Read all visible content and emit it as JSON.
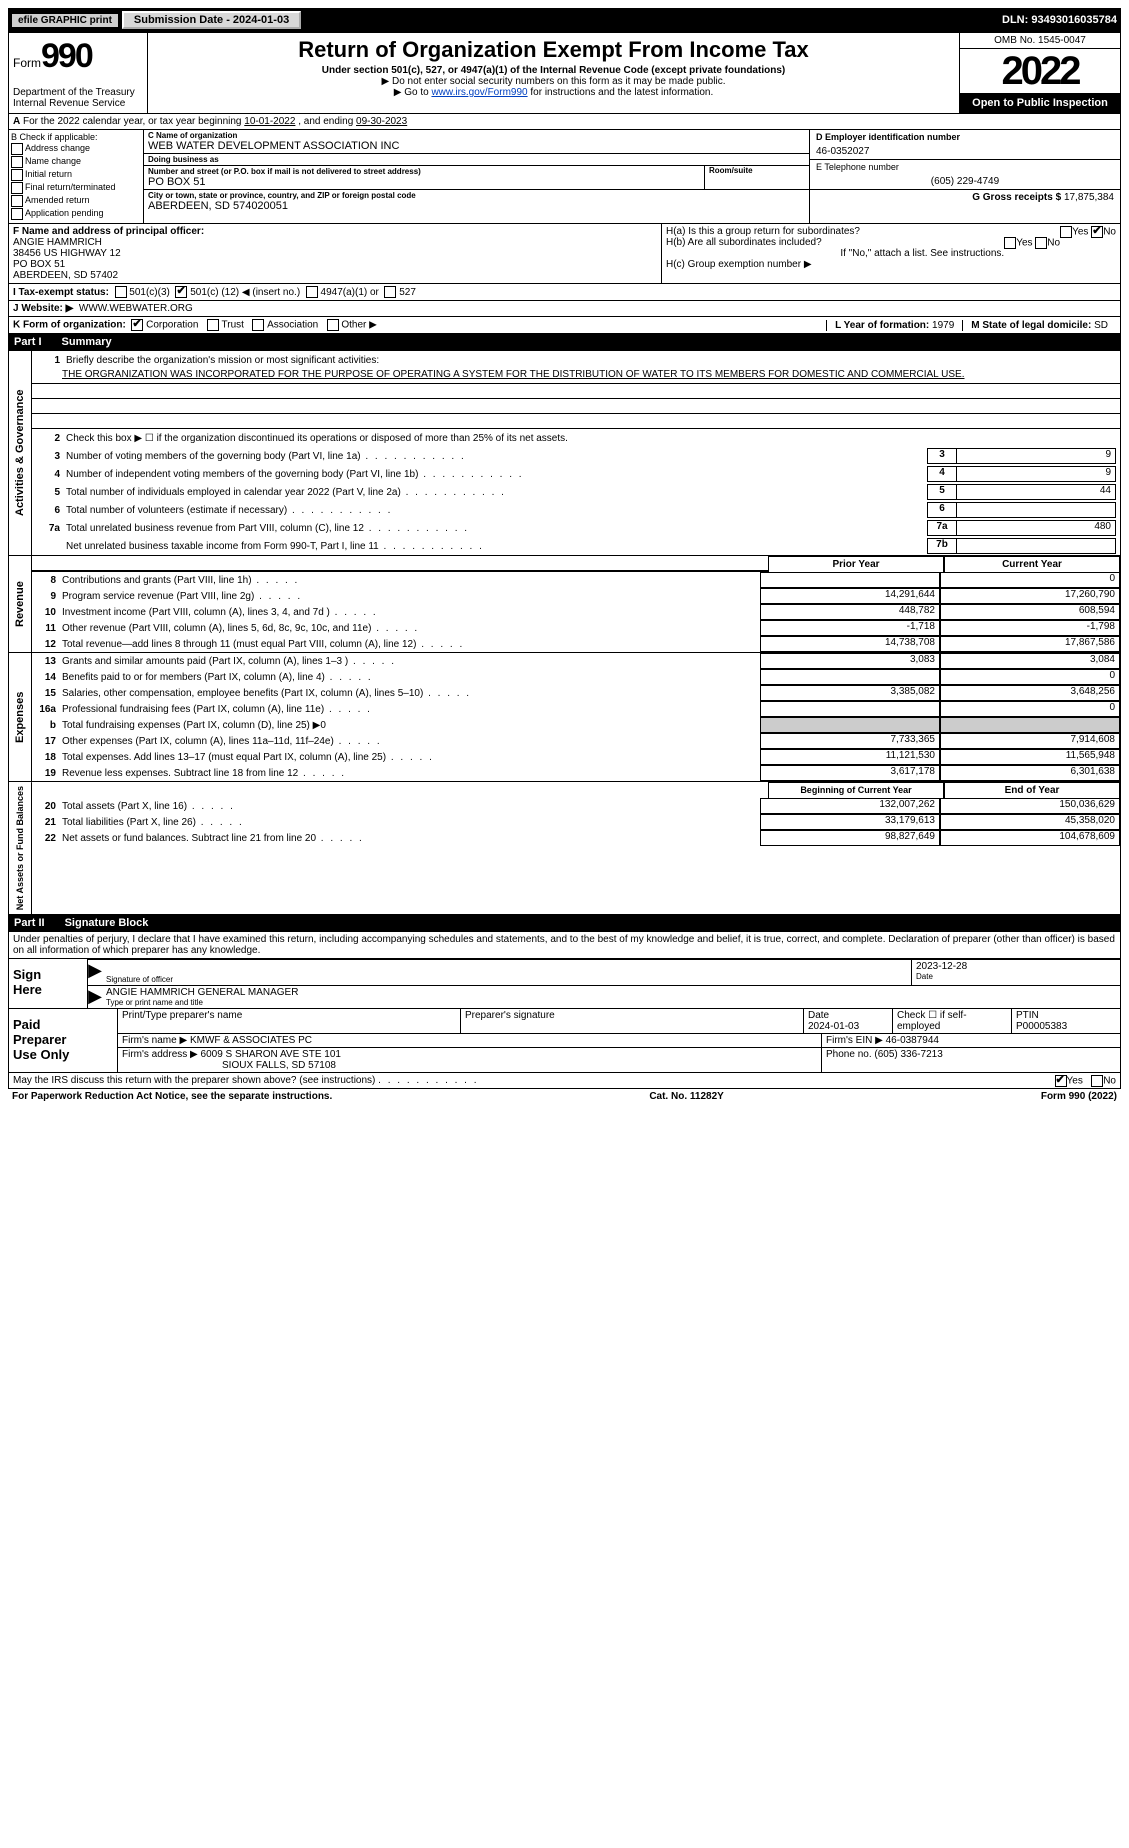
{
  "topbar": {
    "efile_label": "efile GRAPHIC print",
    "submission_btn": "Submission Date - 2024-01-03",
    "dln": "DLN: 93493016035784"
  },
  "header": {
    "form_word": "Form",
    "form_num": "990",
    "dept": "Department of the Treasury",
    "irs": "Internal Revenue Service",
    "title": "Return of Organization Exempt From Income Tax",
    "subtitle": "Under section 501(c), 527, or 4947(a)(1) of the Internal Revenue Code (except private foundations)",
    "ssn_note": "▶ Do not enter social security numbers on this form as it may be made public.",
    "goto_pre": "▶ Go to ",
    "goto_link": "www.irs.gov/Form990",
    "goto_post": " for instructions and the latest information.",
    "omb": "OMB No. 1545-0047",
    "year": "2022",
    "open": "Open to Public Inspection"
  },
  "lineA": {
    "text_pre": "For the 2022 calendar year, or tax year beginning ",
    "ty_begin": "10-01-2022",
    "mid": "  , and ending ",
    "ty_end": "09-30-2023",
    "label_A": "A"
  },
  "colB": {
    "header": "B Check if applicable:",
    "items": [
      "Address change",
      "Name change",
      "Initial return",
      "Final return/terminated",
      "Amended return",
      "Application pending"
    ]
  },
  "colC": {
    "name_label": "C Name of organization",
    "name": "WEB WATER DEVELOPMENT ASSOCIATION INC",
    "dba_label": "Doing business as",
    "dba": "",
    "street_label": "Number and street (or P.O. box if mail is not delivered to street address)",
    "street": "PO BOX 51",
    "suite_label": "Room/suite",
    "city_label": "City or town, state or province, country, and ZIP or foreign postal code",
    "city": "ABERDEEN, SD  574020051"
  },
  "colDE": {
    "d_label": "D Employer identification number",
    "ein": "46-0352027",
    "e_label": "E Telephone number",
    "phone": "(605) 229-4749",
    "g_label": "G Gross receipts $ ",
    "gross": "17,875,384"
  },
  "rowF": {
    "label": "F Name and address of principal officer:",
    "name": "ANGIE HAMMRICH",
    "addr1": "38456 US HIGHWAY 12",
    "addr2": "PO BOX 51",
    "addr3": "ABERDEEN, SD  57402"
  },
  "rowH": {
    "ha_label": "H(a)  Is this a group return for subordinates?",
    "hb_label": "H(b)  Are all subordinates included?",
    "hb_note": "If \"No,\" attach a list. See instructions.",
    "hc_label": "H(c)  Group exemption number ▶",
    "yes": "Yes",
    "no": "No"
  },
  "rowI": {
    "label": "I   Tax-exempt status:",
    "c3": "501(c)(3)",
    "c_pre": "501(c) ( ",
    "c_num": "12",
    "c_post": " ) ◀ (insert no.)",
    "a4947": "4947(a)(1) or",
    "s527": "527"
  },
  "rowJ": {
    "label": "J   Website: ▶",
    "value": "WWW.WEBWATER.ORG"
  },
  "rowK": {
    "label": "K Form of organization:",
    "corp": "Corporation",
    "trust": "Trust",
    "assoc": "Association",
    "other": "Other ▶",
    "L_label": "L Year of formation: ",
    "L_val": "1979",
    "M_label": "M State of legal domicile: ",
    "M_val": "SD"
  },
  "part1": {
    "num": "Part I",
    "title": "Summary",
    "line1_label": "Briefly describe the organization's mission or most significant activities:",
    "mission": "THE ORGRANIZATION WAS INCORPORATED FOR THE PURPOSE OF OPERATING A SYSTEM FOR THE DISTRIBUTION OF WATER TO ITS MEMBERS FOR DOMESTIC AND COMMERCIAL USE.",
    "line2": "Check this box ▶ ☐  if the organization discontinued its operations or disposed of more than 25% of its net assets.",
    "lines_gov": [
      {
        "n": "3",
        "d": "Number of voting members of the governing body (Part VI, line 1a)",
        "b": "3",
        "v": "9"
      },
      {
        "n": "4",
        "d": "Number of independent voting members of the governing body (Part VI, line 1b)",
        "b": "4",
        "v": "9"
      },
      {
        "n": "5",
        "d": "Total number of individuals employed in calendar year 2022 (Part V, line 2a)",
        "b": "5",
        "v": "44"
      },
      {
        "n": "6",
        "d": "Total number of volunteers (estimate if necessary)",
        "b": "6",
        "v": ""
      },
      {
        "n": "7a",
        "d": "Total unrelated business revenue from Part VIII, column (C), line 12",
        "b": "7a",
        "v": "480"
      },
      {
        "n": "",
        "d": "Net unrelated business taxable income from Form 990-T, Part I, line 11",
        "b": "7b",
        "v": ""
      }
    ],
    "prior_hdr": "Prior Year",
    "current_hdr": "Current Year",
    "revenue_lines": [
      {
        "n": "8",
        "d": "Contributions and grants (Part VIII, line 1h)",
        "p": "",
        "c": "0"
      },
      {
        "n": "9",
        "d": "Program service revenue (Part VIII, line 2g)",
        "p": "14,291,644",
        "c": "17,260,790"
      },
      {
        "n": "10",
        "d": "Investment income (Part VIII, column (A), lines 3, 4, and 7d )",
        "p": "448,782",
        "c": "608,594"
      },
      {
        "n": "11",
        "d": "Other revenue (Part VIII, column (A), lines 5, 6d, 8c, 9c, 10c, and 11e)",
        "p": "-1,718",
        "c": "-1,798"
      },
      {
        "n": "12",
        "d": "Total revenue—add lines 8 through 11 (must equal Part VIII, column (A), line 12)",
        "p": "14,738,708",
        "c": "17,867,586"
      }
    ],
    "expense_lines": [
      {
        "n": "13",
        "d": "Grants and similar amounts paid (Part IX, column (A), lines 1–3 )",
        "p": "3,083",
        "c": "3,084"
      },
      {
        "n": "14",
        "d": "Benefits paid to or for members (Part IX, column (A), line 4)",
        "p": "",
        "c": "0"
      },
      {
        "n": "15",
        "d": "Salaries, other compensation, employee benefits (Part IX, column (A), lines 5–10)",
        "p": "3,385,082",
        "c": "3,648,256"
      },
      {
        "n": "16a",
        "d": "Professional fundraising fees (Part IX, column (A), line 11e)",
        "p": "",
        "c": "0"
      },
      {
        "n": "b",
        "d": "Total fundraising expenses (Part IX, column (D), line 25) ▶0",
        "p": null,
        "c": null
      },
      {
        "n": "17",
        "d": "Other expenses (Part IX, column (A), lines 11a–11d, 11f–24e)",
        "p": "7,733,365",
        "c": "7,914,608"
      },
      {
        "n": "18",
        "d": "Total expenses. Add lines 13–17 (must equal Part IX, column (A), line 25)",
        "p": "11,121,530",
        "c": "11,565,948"
      },
      {
        "n": "19",
        "d": "Revenue less expenses. Subtract line 18 from line 12",
        "p": "3,617,178",
        "c": "6,301,638"
      }
    ],
    "na_prior_hdr": "Beginning of Current Year",
    "na_current_hdr": "End of Year",
    "na_lines": [
      {
        "n": "20",
        "d": "Total assets (Part X, line 16)",
        "p": "132,007,262",
        "c": "150,036,629"
      },
      {
        "n": "21",
        "d": "Total liabilities (Part X, line 26)",
        "p": "33,179,613",
        "c": "45,358,020"
      },
      {
        "n": "22",
        "d": "Net assets or fund balances. Subtract line 21 from line 20",
        "p": "98,827,649",
        "c": "104,678,609"
      }
    ],
    "side_gov": "Activities & Governance",
    "side_rev": "Revenue",
    "side_exp": "Expenses",
    "side_na": "Net Assets or Fund Balances"
  },
  "part2": {
    "num": "Part II",
    "title": "Signature Block",
    "declaration": "Under penalties of perjury, I declare that I have examined this return, including accompanying schedules and statements, and to the best of my knowledge and belief, it is true, correct, and complete. Declaration of preparer (other than officer) is based on all information of which preparer has any knowledge."
  },
  "sign": {
    "label1": "Sign",
    "label2": "Here",
    "sig_of_officer": "Signature of officer",
    "date_label": "Date",
    "sig_date": "2023-12-28",
    "name_title": "ANGIE HAMMRICH  GENERAL MANAGER",
    "type_name_label": "Type or print name and title"
  },
  "preparer": {
    "label1": "Paid",
    "label2": "Preparer",
    "label3": "Use Only",
    "pt_name_label": "Print/Type preparer's name",
    "pt_name": "",
    "sig_label": "Preparer's signature",
    "date_label": "Date",
    "date_val": "2024-01-03",
    "check_label": "Check ☐ if self-employed",
    "ptin_label": "PTIN",
    "ptin": "P00005383",
    "firm_name_label": "Firm's name    ▶",
    "firm_name": "KMWF & ASSOCIATES PC",
    "firm_ein_label": "Firm's EIN ▶",
    "firm_ein": "46-0387944",
    "firm_addr_label": "Firm's address ▶",
    "firm_addr1": "6009 S SHARON AVE STE 101",
    "firm_addr2": "SIOUX FALLS, SD  57108",
    "phone_label": "Phone no. ",
    "phone": "(605) 336-7213",
    "discuss": "May the IRS discuss this return with the preparer shown above? (see instructions)",
    "yes": "Yes",
    "no": "No"
  },
  "footer": {
    "pra": "For Paperwork Reduction Act Notice, see the separate instructions.",
    "cat": "Cat. No. 11282Y",
    "form": "Form 990 (2022)"
  }
}
